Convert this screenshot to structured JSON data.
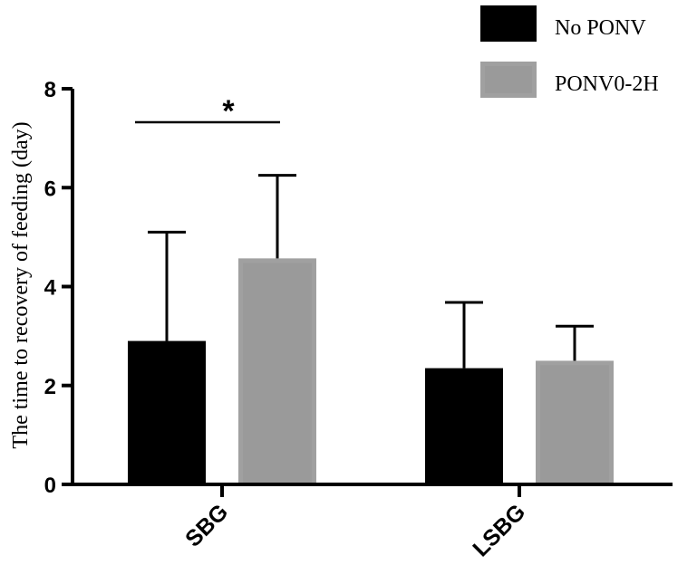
{
  "chart_data": {
    "type": "bar",
    "categories": [
      "SBG",
      "LSBG"
    ],
    "ylabel": "The time to recovery of feeding (day)",
    "xlabel": "",
    "ylim": [
      0,
      8
    ],
    "yticks": [
      0,
      2,
      4,
      6,
      8
    ],
    "grid": false,
    "legend_position": "top-right",
    "series": [
      {
        "name": "No PONV",
        "values": [
          2.9,
          2.35
        ],
        "errors": [
          2.2,
          1.33
        ],
        "color": "#000000"
      },
      {
        "name": "PONV0-2H",
        "values": [
          4.57,
          2.5
        ],
        "errors": [
          1.68,
          0.7
        ],
        "color": "#a0a0a0",
        "inner_color": "#9a9a9a"
      }
    ],
    "annotations": [
      {
        "text": "*",
        "category": "SBG",
        "kind": "significance-bracket"
      }
    ]
  }
}
